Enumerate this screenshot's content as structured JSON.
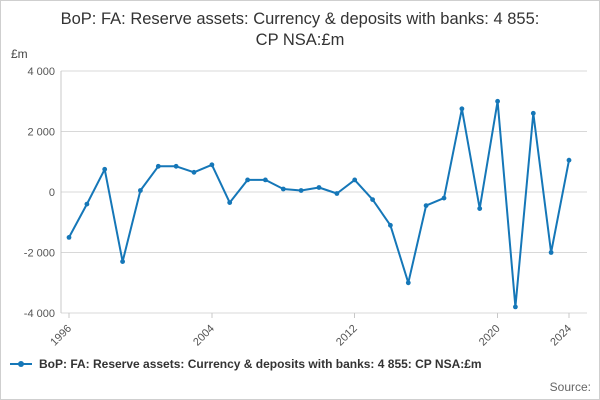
{
  "page": {
    "title": "BoP: FA: Reserve assets: Currency & deposits with banks: 4 855: CP NSA:£m",
    "source_label": "Source:"
  },
  "legend": {
    "label": "BoP: FA: Reserve assets: Currency & deposits with banks: 4 855: CP NSA:£m"
  },
  "chart_data": {
    "type": "line",
    "title": "BoP: FA: Reserve assets: Currency & deposits with banks: 4 855: CP NSA:£m",
    "unit_label": "£m",
    "xlabel": "",
    "ylabel": "£m",
    "x": [
      1996,
      1997,
      1998,
      1999,
      2000,
      2001,
      2002,
      2003,
      2004,
      2005,
      2006,
      2007,
      2008,
      2009,
      2010,
      2011,
      2012,
      2013,
      2014,
      2015,
      2016,
      2017,
      2018,
      2019,
      2020,
      2021,
      2022,
      2023,
      2024
    ],
    "values": [
      -1500,
      -400,
      750,
      -2300,
      50,
      850,
      850,
      650,
      900,
      -350,
      400,
      400,
      100,
      50,
      150,
      -50,
      400,
      -250,
      -1100,
      -3000,
      -450,
      -200,
      2750,
      -550,
      3000,
      -3800,
      2600,
      -2000,
      1050
    ],
    "xlim": [
      1996,
      2024
    ],
    "ylim": [
      -4000,
      4000
    ],
    "x_tick_labels": [
      "1996",
      "2004",
      "2012",
      "2020",
      "2024"
    ],
    "y_ticks": [
      4000,
      2000,
      0,
      -2000,
      -4000
    ],
    "y_tick_labels": [
      "4 000",
      "2 000",
      "0",
      "-2 000",
      "-4 000"
    ],
    "grid": true,
    "legend_position": "bottom-left",
    "line_color": "#1577b8",
    "grid_color": "#d8d8d8",
    "axis_color": "#c8c8c8"
  }
}
